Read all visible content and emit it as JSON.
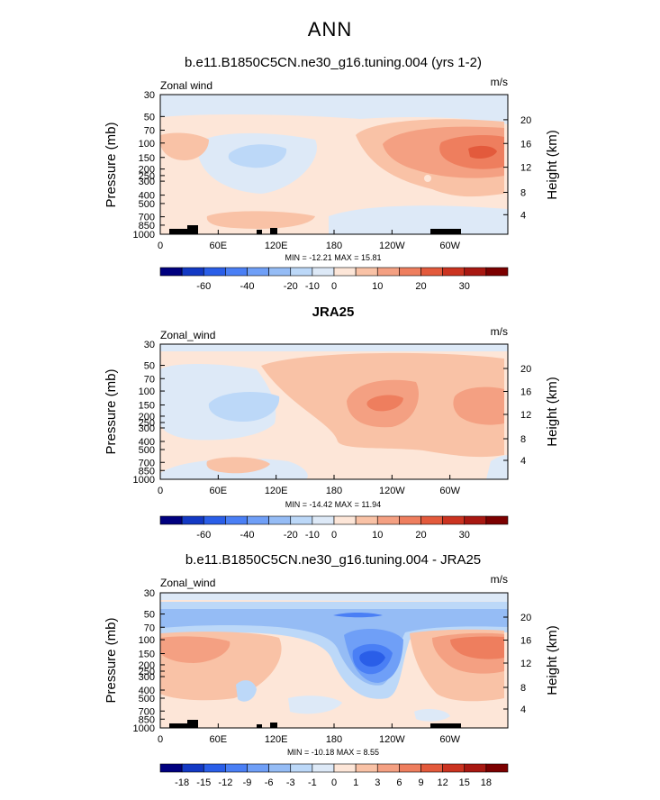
{
  "main_title": "ANN",
  "colors": {
    "colorbar_main": [
      "#00007f",
      "#1339c4",
      "#2a5ee8",
      "#4a7ff5",
      "#6f9ff7",
      "#95bcf5",
      "#bcd8f8",
      "#dde9f7",
      "#fde6d8",
      "#f9c2a6",
      "#f4a082",
      "#ee7e5e",
      "#e35a3c",
      "#cb3320",
      "#a81811",
      "#7c0000"
    ],
    "colorbar_diff": [
      "#00007f",
      "#1339c4",
      "#2a5ee8",
      "#4a7ff5",
      "#6f9ff7",
      "#95bcf5",
      "#bcd8f8",
      "#dde9f7",
      "#fde6d8",
      "#f9c2a6",
      "#f4a082",
      "#ee7e5e",
      "#e35a3c",
      "#cb3320",
      "#a81811",
      "#7c0000"
    ]
  },
  "chart_data": [
    {
      "type": "heatmap",
      "title": "b.e11.B1850C5CN.ne30_g16.tuning.004 (yrs 1-2)",
      "variable_label": "Zonal wind",
      "units_label": "m/s",
      "ylabel": "Pressure (mb)",
      "y2label": "Height (km)",
      "pressure_ticks": [
        "30",
        "50",
        "70",
        "100",
        "150",
        "200",
        "250",
        "300",
        "400",
        "500",
        "700",
        "850",
        "1000"
      ],
      "height_ticks": [
        "20",
        "16",
        "12",
        "8",
        "4"
      ],
      "lon_ticks": [
        "0",
        "60E",
        "120E",
        "180",
        "120W",
        "60W"
      ],
      "stats": "MIN = -12.21   MAX =  15.81",
      "colorbar_labels": [
        "-60",
        "-40",
        "-20",
        "-10",
        "0",
        "10",
        "20",
        "30"
      ],
      "zonal_wind_range_ms": [
        -12.21,
        15.81
      ]
    },
    {
      "type": "heatmap",
      "title": "JRA25",
      "variable_label": "Zonal_wind",
      "units_label": "m/s",
      "ylabel": "Pressure (mb)",
      "y2label": "Height (km)",
      "pressure_ticks": [
        "30",
        "50",
        "70",
        "100",
        "150",
        "200",
        "250",
        "300",
        "400",
        "500",
        "700",
        "850",
        "1000"
      ],
      "height_ticks": [
        "20",
        "16",
        "12",
        "8",
        "4"
      ],
      "lon_ticks": [
        "0",
        "60E",
        "120E",
        "180",
        "120W",
        "60W"
      ],
      "stats": "MIN = -14.42   MAX =  11.94",
      "colorbar_labels": [
        "-60",
        "-40",
        "-20",
        "-10",
        "0",
        "10",
        "20",
        "30"
      ],
      "zonal_wind_range_ms": [
        -14.42,
        11.94
      ]
    },
    {
      "type": "heatmap",
      "title": "b.e11.B1850C5CN.ne30_g16.tuning.004 - JRA25",
      "variable_label": "Zonal_wind",
      "units_label": "m/s",
      "ylabel": "Pressure (mb)",
      "y2label": "Height (km)",
      "pressure_ticks": [
        "30",
        "50",
        "70",
        "100",
        "150",
        "200",
        "250",
        "300",
        "400",
        "500",
        "700",
        "850",
        "1000"
      ],
      "height_ticks": [
        "20",
        "16",
        "12",
        "8",
        "4"
      ],
      "lon_ticks": [
        "0",
        "60E",
        "120E",
        "180",
        "120W",
        "60W"
      ],
      "stats": "MIN = -10.18   MAX =   8.55",
      "colorbar_labels": [
        "-18",
        "-15",
        "-12",
        "-9",
        "-6",
        "-3",
        "-1",
        "0",
        "1",
        "3",
        "6",
        "9",
        "12",
        "15",
        "18"
      ],
      "zonal_wind_range_ms": [
        -10.18,
        8.55
      ]
    }
  ]
}
